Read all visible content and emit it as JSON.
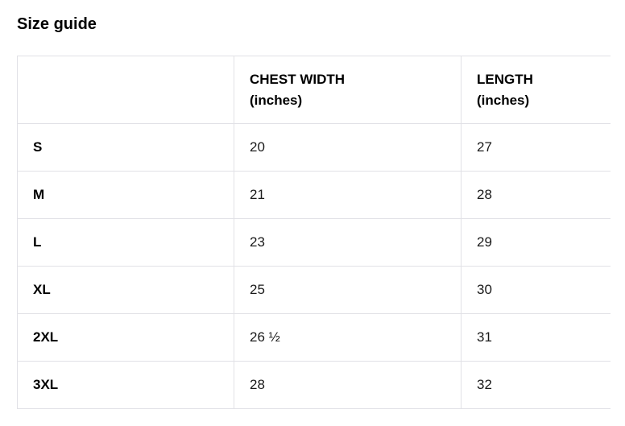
{
  "title": "Size guide",
  "table": {
    "headers": [
      {
        "line1": "",
        "line2": ""
      },
      {
        "line1": "CHEST WIDTH",
        "line2": "(inches)"
      },
      {
        "line1": "LENGTH",
        "line2": "(inches)"
      }
    ],
    "rows": [
      {
        "size": "S",
        "chest_width": "20",
        "length": "27"
      },
      {
        "size": "M",
        "chest_width": "21",
        "length": "28"
      },
      {
        "size": "L",
        "chest_width": "23",
        "length": "29"
      },
      {
        "size": "XL",
        "chest_width": "25",
        "length": "30"
      },
      {
        "size": "2XL",
        "chest_width": "26 ½",
        "length": "31"
      },
      {
        "size": "3XL",
        "chest_width": "28",
        "length": "32"
      }
    ]
  },
  "colors": {
    "background": "#ffffff",
    "title_text": "#000000",
    "cell_text": "#1a1a1a",
    "border": "#e1e1e6"
  }
}
